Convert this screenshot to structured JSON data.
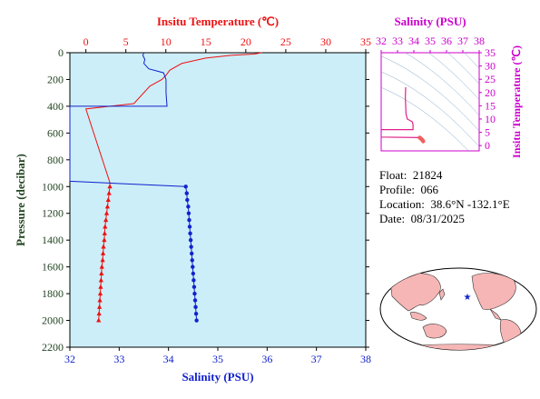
{
  "main_chart": {
    "top_axis_title": "Insitu Temperature (℃)",
    "bottom_axis_title": "Salinity (PSU)",
    "left_axis_title": "Pressure (decibar)",
    "temp_ticks": [
      "0",
      "5",
      "10",
      "15",
      "20",
      "25",
      "30",
      "35"
    ],
    "sal_ticks": [
      "32",
      "33",
      "34",
      "35",
      "36",
      "37",
      "38"
    ],
    "pressure_ticks": [
      "0",
      "200",
      "400",
      "600",
      "800",
      "1000",
      "1200",
      "1400",
      "1600",
      "1800",
      "2000",
      "2200"
    ],
    "temp_range": [
      -2,
      35
    ],
    "sal_range": [
      32,
      38
    ],
    "pressure_range": [
      0,
      2200
    ]
  },
  "ts_chart": {
    "top_axis_title": "Salinity (PSU)",
    "right_axis_title": "Insitu Temperature (℃)",
    "sal_ticks": [
      "32",
      "33",
      "34",
      "35",
      "36",
      "37",
      "38"
    ],
    "temp_ticks": [
      "0",
      "5",
      "10",
      "15",
      "20",
      "25",
      "30",
      "35"
    ]
  },
  "info": {
    "float_label": "Float:",
    "float_value": "21824",
    "profile_label": "Profile:",
    "profile_value": "066",
    "location_label": "Location:",
    "location_value": "38.6°N  -132.1°E",
    "date_label": "Date:",
    "date_value": "08/31/2025"
  },
  "colors": {
    "plot_bg": "#cceef8",
    "temperature": "#ee1111",
    "salinity": "#1122cc",
    "ts_curve": "#e0208a",
    "ts_axis": "#cc00cc",
    "pressure_axis": "#224422",
    "land": "#f6b6b6"
  },
  "chart_data": [
    {
      "type": "line",
      "title": "",
      "xlabel": "Insitu Temperature (℃)",
      "ylabel": "Pressure (decibar)",
      "series": [
        {
          "name": "Insitu Temperature (℃)",
          "points": [
            [
              22,
              0
            ],
            [
              21,
              10
            ],
            [
              18,
              20
            ],
            [
              15,
              40
            ],
            [
              12,
              80
            ],
            [
              10.5,
              130
            ],
            [
              10,
              170
            ],
            [
              9.5,
              200
            ],
            [
              8,
              250
            ],
            [
              6,
              380
            ],
            [
              0,
              420
            ],
            [
              3,
              970
            ],
            [
              3,
              1000
            ],
            [
              2.9,
              1050
            ],
            [
              2.8,
              1100
            ],
            [
              2.7,
              1150
            ],
            [
              2.6,
              1200
            ],
            [
              2.5,
              1250
            ],
            [
              2.4,
              1300
            ],
            [
              2.35,
              1350
            ],
            [
              2.3,
              1400
            ],
            [
              2.2,
              1450
            ],
            [
              2.15,
              1500
            ],
            [
              2.1,
              1550
            ],
            [
              2,
              1600
            ],
            [
              1.95,
              1650
            ],
            [
              1.9,
              1700
            ],
            [
              1.85,
              1750
            ],
            [
              1.8,
              1800
            ],
            [
              1.75,
              1850
            ],
            [
              1.7,
              1900
            ],
            [
              1.65,
              1950
            ],
            [
              1.6,
              2000
            ]
          ],
          "markers_from_pressure": 1000
        }
      ]
    },
    {
      "type": "line",
      "title": "",
      "xlabel": "Salinity (PSU)",
      "ylabel": "Pressure (decibar)",
      "series": [
        {
          "name": "Salinity (PSU)",
          "points": [
            [
              33.5,
              0
            ],
            [
              33.48,
              20
            ],
            [
              33.52,
              50
            ],
            [
              33.5,
              80
            ],
            [
              33.6,
              120
            ],
            [
              33.9,
              150
            ],
            [
              33.95,
              200
            ],
            [
              33.95,
              300
            ],
            [
              33.97,
              400
            ],
            [
              32,
              400
            ],
            [
              32,
              960
            ],
            [
              34.35,
              1000
            ],
            [
              34.37,
              1050
            ],
            [
              34.38,
              1100
            ],
            [
              34.4,
              1150
            ],
            [
              34.41,
              1200
            ],
            [
              34.42,
              1250
            ],
            [
              34.43,
              1300
            ],
            [
              34.44,
              1350
            ],
            [
              34.45,
              1400
            ],
            [
              34.46,
              1450
            ],
            [
              34.47,
              1500
            ],
            [
              34.48,
              1550
            ],
            [
              34.49,
              1600
            ],
            [
              34.5,
              1650
            ],
            [
              34.51,
              1700
            ],
            [
              34.52,
              1750
            ],
            [
              34.53,
              1800
            ],
            [
              34.54,
              1850
            ],
            [
              34.55,
              1900
            ],
            [
              34.56,
              1950
            ],
            [
              34.57,
              2000
            ]
          ],
          "markers_from_pressure": 1000
        }
      ]
    },
    {
      "type": "scatter",
      "title": "",
      "xlabel": "Salinity (PSU)",
      "ylabel": "Insitu Temperature (℃)",
      "xlim": [
        32,
        38
      ],
      "ylim": [
        -2,
        35
      ],
      "series": [
        {
          "name": "T-S",
          "points": [
            [
              33.5,
              22
            ],
            [
              33.48,
              18
            ],
            [
              33.5,
              15
            ],
            [
              33.52,
              12
            ],
            [
              33.6,
              10
            ],
            [
              33.9,
              9
            ],
            [
              33.95,
              8
            ],
            [
              33.95,
              6
            ],
            [
              32,
              6
            ],
            [
              32,
              3.2
            ],
            [
              34.35,
              3
            ],
            [
              34.4,
              2.8
            ],
            [
              34.45,
              2.5
            ],
            [
              34.5,
              2.2
            ],
            [
              34.55,
              1.9
            ],
            [
              34.57,
              1.6
            ]
          ]
        }
      ]
    }
  ]
}
